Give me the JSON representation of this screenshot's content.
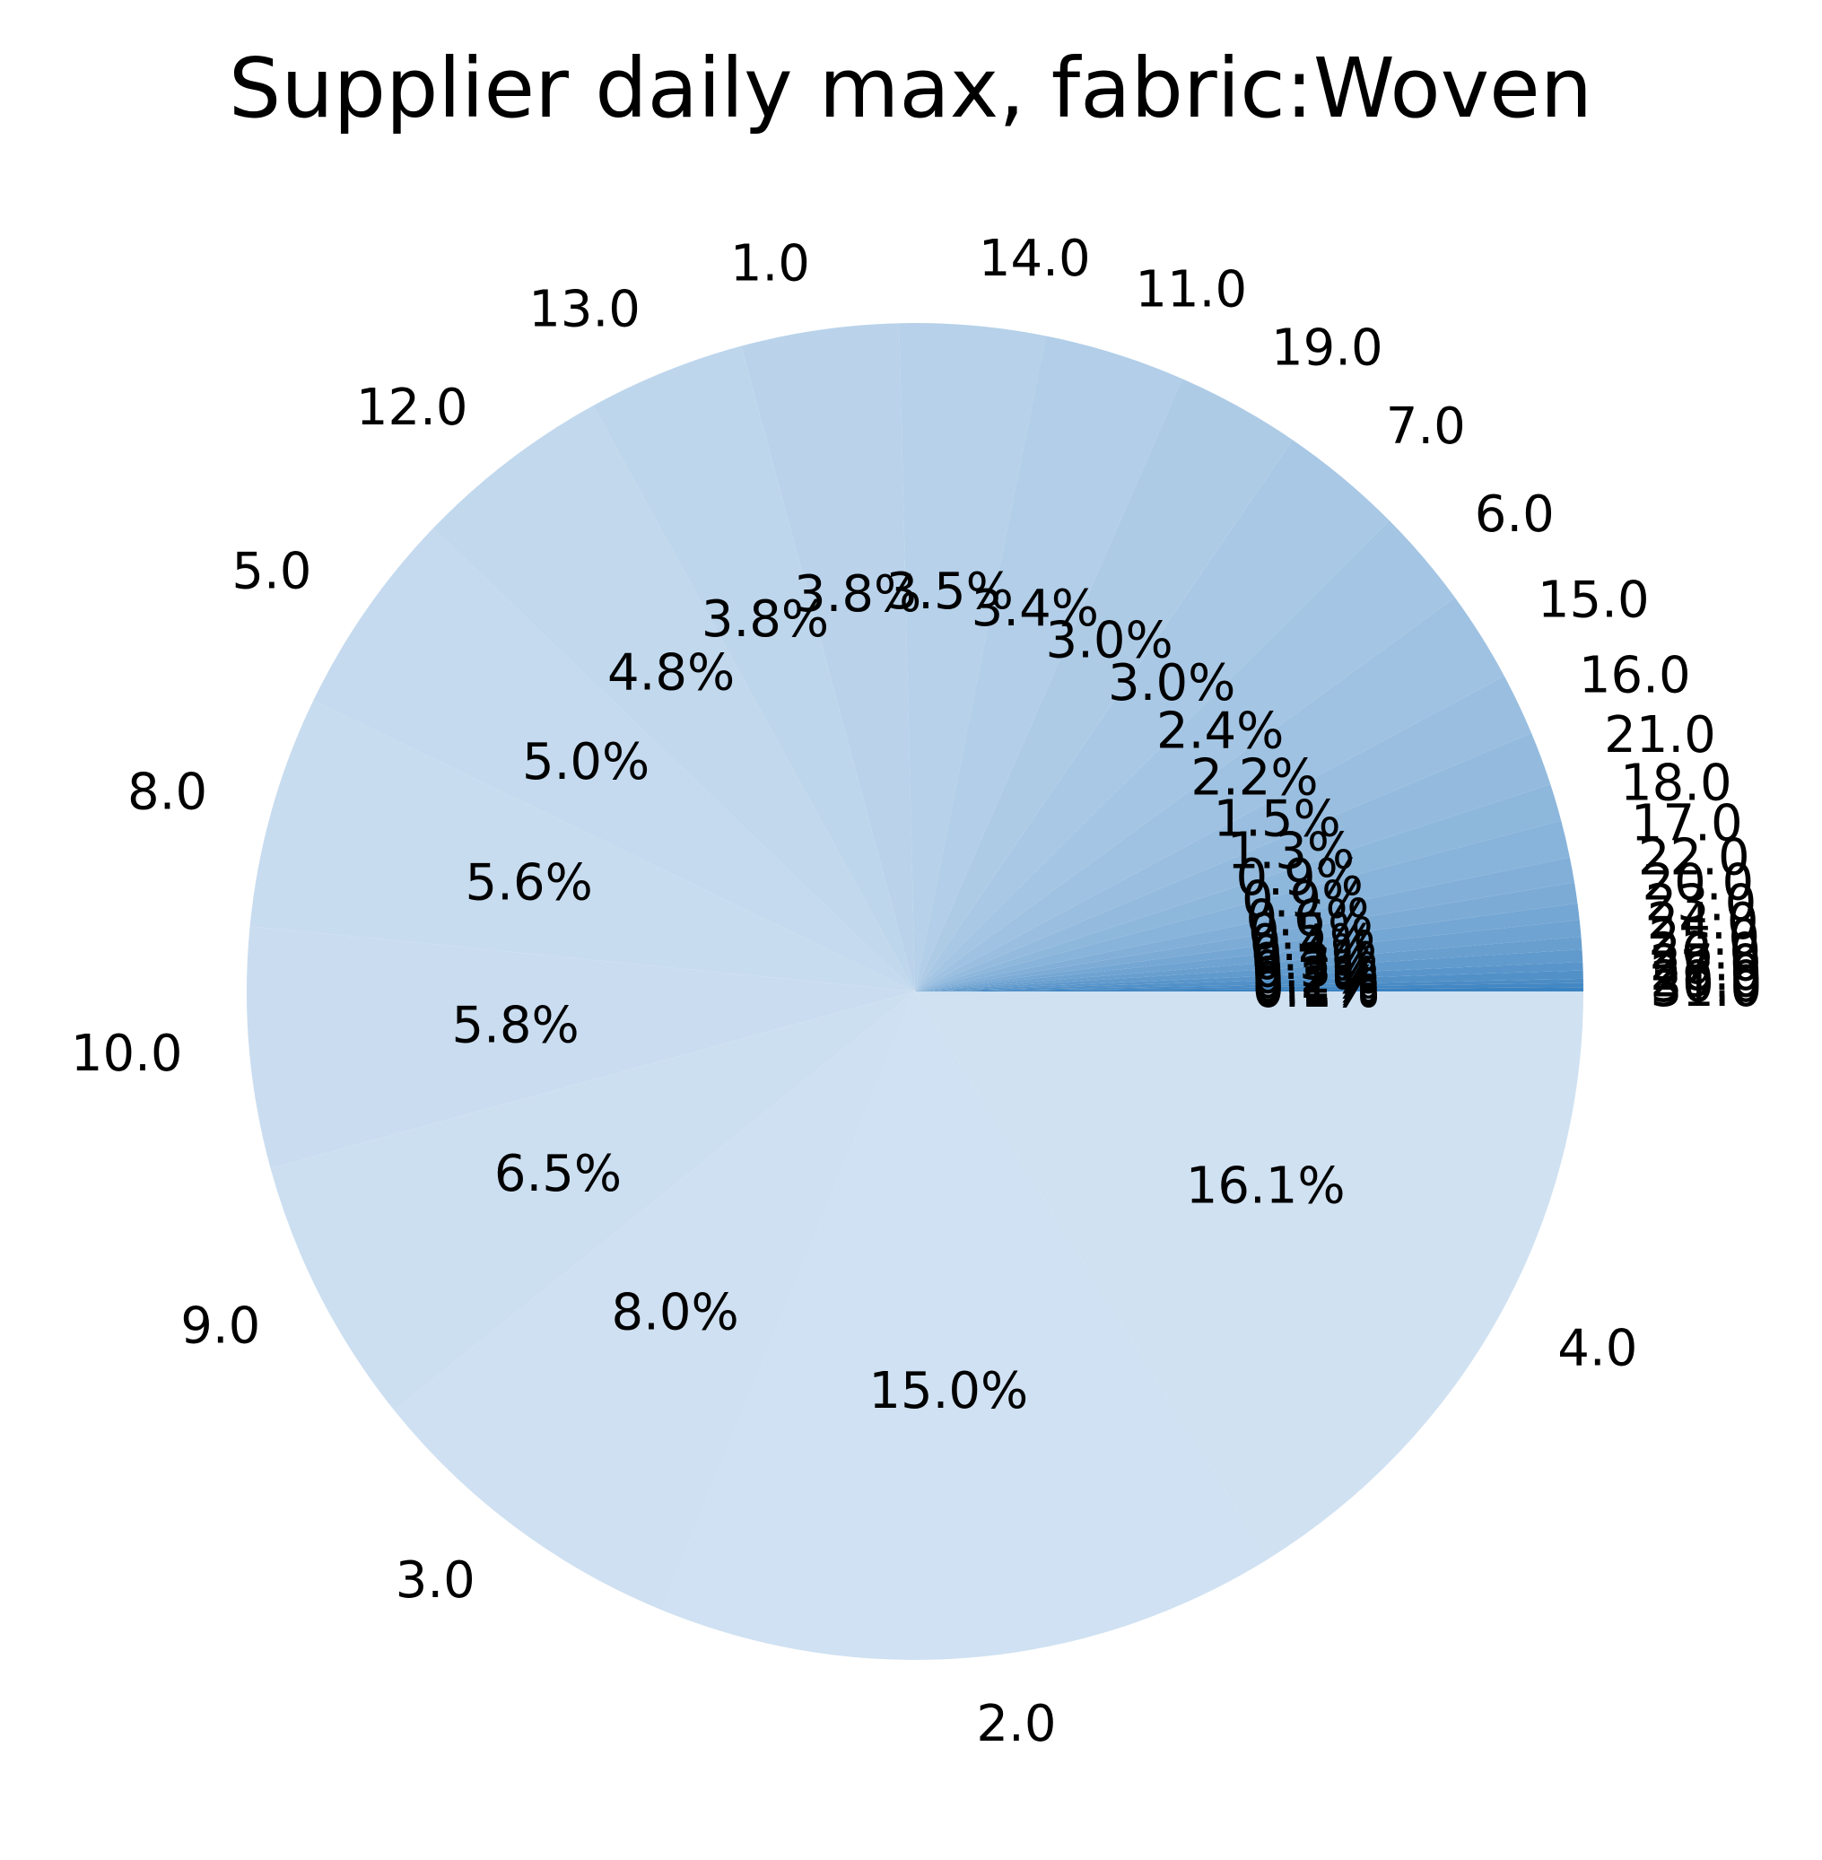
{
  "chart_data": {
    "type": "pie",
    "title": "Supplier daily max, fabric:Woven",
    "categories": [
      "4.0",
      "2.0",
      "3.0",
      "9.0",
      "10.0",
      "8.0",
      "5.0",
      "12.0",
      "13.0",
      "1.0",
      "14.0",
      "11.0",
      "19.0",
      "7.0",
      "6.0",
      "15.0",
      "16.0",
      "21.0",
      "18.0",
      "17.0",
      "22.0",
      "20.0",
      "23.0",
      "24.0",
      "25.0",
      "26.0",
      "27.0",
      "28.0",
      "29.0",
      "30.0",
      "31.0"
    ],
    "values": [
      16.1,
      15.0,
      8.0,
      6.5,
      5.8,
      5.6,
      5.0,
      4.8,
      3.8,
      3.8,
      3.5,
      3.4,
      3.0,
      3.0,
      2.4,
      2.2,
      1.5,
      1.3,
      0.9,
      0.9,
      0.6,
      0.5,
      0.4,
      0.4,
      0.3,
      0.3,
      0.2,
      0.2,
      0.1,
      0.1,
      0.1
    ],
    "percent_labels": [
      "16.1%",
      "15.0%",
      "8.0%",
      "6.5%",
      "5.8%",
      "5.6%",
      "5.0%",
      "4.8%",
      "3.8%",
      "3.8%",
      "3.5%",
      "3.4%",
      "3.0%",
      "3.0%",
      "2.4%",
      "2.2%",
      "1.5%",
      "1.3%",
      "0.9%",
      "0.9%",
      "0.6%",
      "0.5%",
      "0.4%",
      "0.4%",
      "0.3%",
      "0.3%",
      "0.2%",
      "0.2%",
      "0.1%",
      "0.1%",
      "0.1%"
    ],
    "start_angle": 0,
    "direction": "clockwise",
    "colormap": "Blues",
    "color_light": "#d0e1f2",
    "color_dark": "#3b82c0"
  }
}
